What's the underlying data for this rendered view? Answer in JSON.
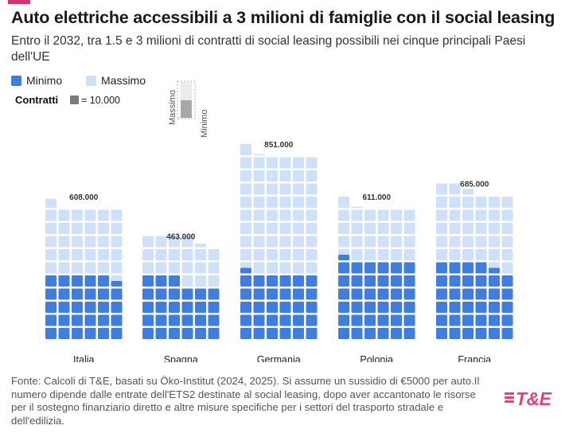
{
  "header": {
    "title": "Auto elettriche accessibili a 3 milioni di famiglie con il social leasing",
    "subtitle": "Entro il 2032, tra 1.5 e 3 milioni di contratti di social leasing possibili nei cinque principali Paesi dell'UE"
  },
  "legend": {
    "min_label": "Minimo",
    "max_label": "Massimo",
    "contratti_label": "Contratti",
    "unit_label": "= 10.000",
    "key_max_label": "Massimo",
    "key_min_label": "Minimo"
  },
  "colors": {
    "minimo": "#3f7de0",
    "massimo": "#cfe0f9",
    "unit_square": "#7a7a7a",
    "brand": "#e0447a"
  },
  "chart_data": {
    "type": "waffle",
    "unit": 10000,
    "columns_per_country": 6,
    "categories": [
      "Italia",
      "Spagna",
      "Germania",
      "Polonia",
      "Francia"
    ],
    "series": [
      {
        "name": "Minimo",
        "values": [
          295000,
          270000,
          305000,
          365000,
          345000
        ]
      },
      {
        "name": "Massimo",
        "values": [
          608000,
          463000,
          851000,
          611000,
          685000
        ]
      }
    ],
    "value_labels": [
      "608.000",
      "463.000",
      "851.000",
      "611.000",
      "685.000"
    ]
  },
  "footer": {
    "source": "Fonte: Calcoli di T&E, basati su Öko-Institut (2024, 2025). Si assume un sussidio di €5000 per auto.Il numero dipende dalle entrate dell'ETS2 destinate al social leasing, dopo aver accantonato le risorse per il sostegno finanziario diretto e altre misure specifiche per i settori del trasporto stradale e dell'edilizia."
  },
  "logo": {
    "text": "T&E"
  }
}
